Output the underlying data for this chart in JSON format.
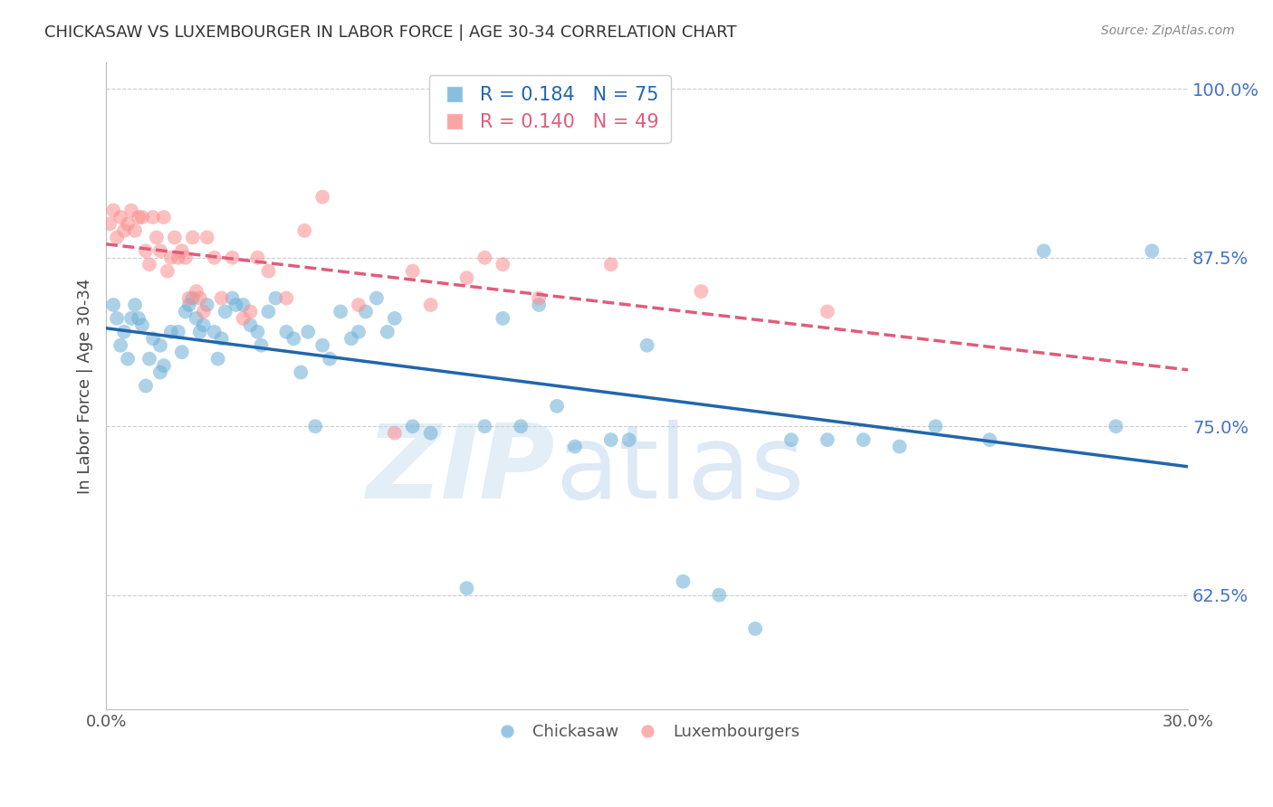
{
  "title": "CHICKASAW VS LUXEMBOURGER IN LABOR FORCE | AGE 30-34 CORRELATION CHART",
  "source": "Source: ZipAtlas.com",
  "ylabel": "In Labor Force | Age 30-34",
  "xmin": 0.0,
  "xmax": 0.3,
  "ymin": 0.54,
  "ymax": 1.02,
  "yticks": [
    0.625,
    0.75,
    0.875,
    1.0
  ],
  "ytick_labels": [
    "62.5%",
    "75.0%",
    "87.5%",
    "100.0%"
  ],
  "xticks": [
    0.0,
    0.05,
    0.1,
    0.15,
    0.2,
    0.25,
    0.3
  ],
  "xtick_labels": [
    "0.0%",
    "",
    "",
    "",
    "",
    "",
    "30.0%"
  ],
  "chickasaw_R": 0.184,
  "chickasaw_N": 75,
  "luxembourger_R": 0.14,
  "luxembourger_N": 49,
  "blue_color": "#6baed6",
  "pink_color": "#fc8d8d",
  "blue_line_color": "#2166ac",
  "pink_line_color": "#e05c7a",
  "chickasaw_x": [
    0.002,
    0.003,
    0.004,
    0.005,
    0.006,
    0.007,
    0.008,
    0.009,
    0.01,
    0.011,
    0.012,
    0.013,
    0.015,
    0.015,
    0.016,
    0.018,
    0.02,
    0.021,
    0.022,
    0.023,
    0.024,
    0.025,
    0.026,
    0.027,
    0.028,
    0.03,
    0.031,
    0.032,
    0.033,
    0.035,
    0.036,
    0.038,
    0.04,
    0.042,
    0.043,
    0.045,
    0.047,
    0.05,
    0.052,
    0.054,
    0.056,
    0.058,
    0.06,
    0.062,
    0.065,
    0.068,
    0.07,
    0.072,
    0.075,
    0.078,
    0.08,
    0.085,
    0.09,
    0.1,
    0.105,
    0.11,
    0.115,
    0.12,
    0.125,
    0.13,
    0.14,
    0.145,
    0.15,
    0.16,
    0.17,
    0.18,
    0.19,
    0.2,
    0.21,
    0.22,
    0.23,
    0.245,
    0.26,
    0.28,
    0.29
  ],
  "chickasaw_y": [
    0.84,
    0.83,
    0.81,
    0.82,
    0.8,
    0.83,
    0.84,
    0.83,
    0.825,
    0.78,
    0.8,
    0.815,
    0.79,
    0.81,
    0.795,
    0.82,
    0.82,
    0.805,
    0.835,
    0.84,
    0.845,
    0.83,
    0.82,
    0.825,
    0.84,
    0.82,
    0.8,
    0.815,
    0.835,
    0.845,
    0.84,
    0.84,
    0.825,
    0.82,
    0.81,
    0.835,
    0.845,
    0.82,
    0.815,
    0.79,
    0.82,
    0.75,
    0.81,
    0.8,
    0.835,
    0.815,
    0.82,
    0.835,
    0.845,
    0.82,
    0.83,
    0.75,
    0.745,
    0.63,
    0.75,
    0.83,
    0.75,
    0.84,
    0.765,
    0.735,
    0.74,
    0.74,
    0.81,
    0.635,
    0.625,
    0.6,
    0.74,
    0.74,
    0.74,
    0.735,
    0.75,
    0.74,
    0.88,
    0.75,
    0.88
  ],
  "luxembourger_x": [
    0.001,
    0.002,
    0.003,
    0.004,
    0.005,
    0.006,
    0.007,
    0.008,
    0.009,
    0.01,
    0.011,
    0.012,
    0.013,
    0.014,
    0.015,
    0.016,
    0.017,
    0.018,
    0.019,
    0.02,
    0.021,
    0.022,
    0.023,
    0.024,
    0.025,
    0.026,
    0.027,
    0.028,
    0.03,
    0.032,
    0.035,
    0.038,
    0.04,
    0.042,
    0.045,
    0.05,
    0.055,
    0.06,
    0.07,
    0.08,
    0.085,
    0.09,
    0.1,
    0.105,
    0.11,
    0.12,
    0.14,
    0.165,
    0.2
  ],
  "luxembourger_y": [
    0.9,
    0.91,
    0.89,
    0.905,
    0.895,
    0.9,
    0.91,
    0.895,
    0.905,
    0.905,
    0.88,
    0.87,
    0.905,
    0.89,
    0.88,
    0.905,
    0.865,
    0.875,
    0.89,
    0.875,
    0.88,
    0.875,
    0.845,
    0.89,
    0.85,
    0.845,
    0.835,
    0.89,
    0.875,
    0.845,
    0.875,
    0.83,
    0.835,
    0.875,
    0.865,
    0.845,
    0.895,
    0.92,
    0.84,
    0.745,
    0.865,
    0.84,
    0.86,
    0.875,
    0.87,
    0.845,
    0.87,
    0.85,
    0.835
  ],
  "watermark_text1": "ZIP",
  "watermark_text2": "atlas",
  "background_color": "#ffffff",
  "grid_color": "#cccccc"
}
